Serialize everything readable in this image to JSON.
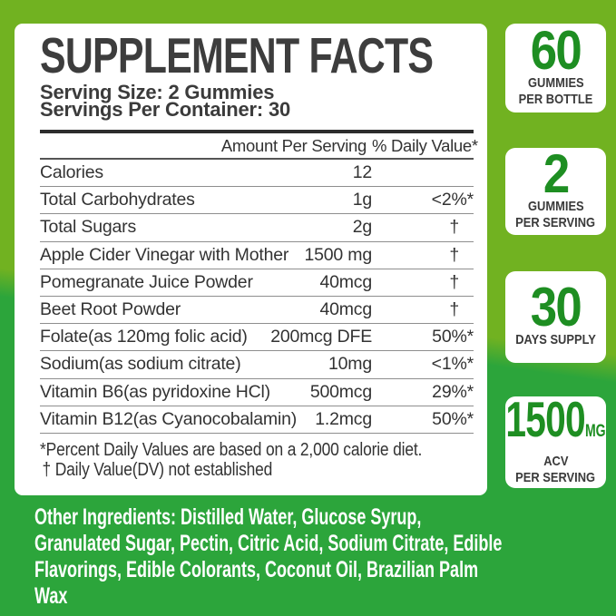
{
  "panel": {
    "title": "SUPPLEMENT FACTS",
    "serving_size": "Serving Size: 2 Gummies",
    "servings_per_container": "Servings Per Container: 30",
    "columns": {
      "amount": "Amount Per Serving",
      "daily_value": "% Daily Value*"
    },
    "rows": [
      {
        "name": "Calories",
        "amount": "12",
        "dv": ""
      },
      {
        "name": "Total Carbohydrates",
        "amount": "1g",
        "dv": "<2%*"
      },
      {
        "name": "Total Sugars",
        "amount": "2g",
        "dv": "†"
      },
      {
        "name": "Apple Cider Vinegar with Mother",
        "amount": "1500 mg",
        "dv": "†"
      },
      {
        "name": "Pomegranate Juice Powder",
        "amount": "40mcg",
        "dv": "†"
      },
      {
        "name": "Beet Root Powder",
        "amount": "40mcg",
        "dv": "†"
      },
      {
        "name": "Folate(as 120mg folic acid)",
        "amount": "200mcg DFE",
        "dv": "50%*"
      },
      {
        "name": "Sodium(as sodium citrate)",
        "amount": "10mg",
        "dv": "<1%*"
      },
      {
        "name": "Vitamin B6(as pyridoxine HCl)",
        "amount": "500mcg",
        "dv": "29%*"
      },
      {
        "name": "Vitamin B12(as Cyanocobalamin)",
        "amount": "1.2mcg",
        "dv": "50%*"
      }
    ],
    "footnotes": [
      "*Percent Daily Values are based on a 2,000 calorie diet.",
      "† Daily Value(DV) not established"
    ]
  },
  "badges": [
    {
      "number": "60",
      "unit": "",
      "label_lines": [
        "GUMMIES",
        "PER BOTTLE"
      ]
    },
    {
      "number": "2",
      "unit": "",
      "label_lines": [
        "GUMMIES",
        "PER SERVING"
      ]
    },
    {
      "number": "30",
      "unit": "",
      "label_lines": [
        "DAYS SUPPLY"
      ]
    },
    {
      "number": "1500",
      "unit": "MG",
      "label_lines": [
        "ACV",
        "PER SERVING"
      ]
    }
  ],
  "footer": {
    "lines": [
      "Other Ingredients: Distilled Water, Glucose Syrup,",
      "Granulated Sugar, Pectin, Citric Acid, Sodium Citrate, Edible",
      "Flavorings, Edible Colorants, Coconut Oil, Brazilian Palm",
      "Wax"
    ]
  },
  "colors": {
    "background_top": "#71b221",
    "background_bottom": "#2ca53b",
    "accent_green": "#1e8e22",
    "text_dark": "#3b3b3b"
  }
}
